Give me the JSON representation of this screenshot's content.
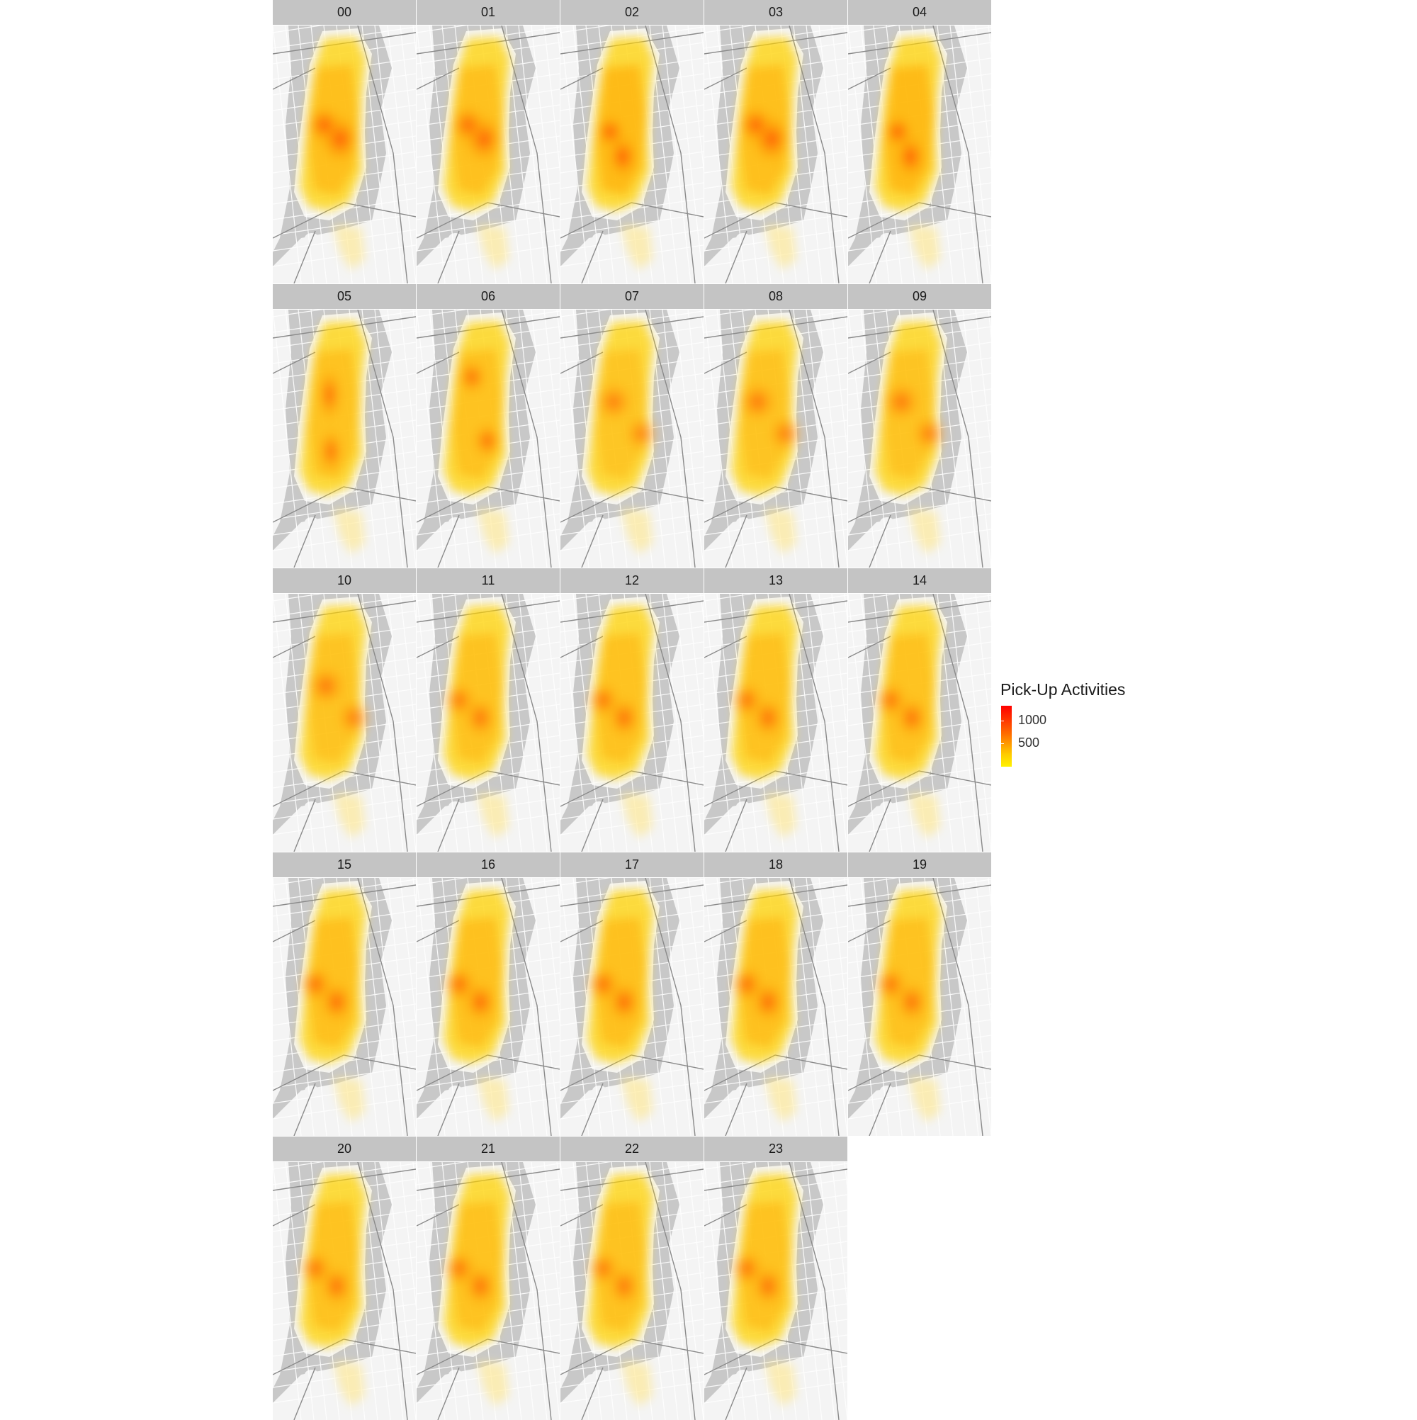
{
  "legend": {
    "title": "Pick-Up Activities",
    "breaks": [
      {
        "label": "1000",
        "value": 1000
      },
      {
        "label": "500",
        "value": 500
      }
    ],
    "range": [
      250,
      1250
    ],
    "colors": [
      "#fff200",
      "#ffcc00",
      "#ff6a00",
      "#ff0000"
    ]
  },
  "basemap": {
    "water_color": "#c8c8c8",
    "land_color": "#f4f4f4",
    "street_color": "#ffffff",
    "highway_color": "#8a8a8a"
  },
  "panels": [
    {
      "label": "00",
      "peak": 0.55,
      "hotspot": "midtown-east"
    },
    {
      "label": "01",
      "peak": 0.5,
      "hotspot": "midtown-east"
    },
    {
      "label": "02",
      "peak": 0.75,
      "hotspot": "lower-east"
    },
    {
      "label": "03",
      "peak": 0.55,
      "hotspot": "midtown-east"
    },
    {
      "label": "04",
      "peak": 0.75,
      "hotspot": "lower-east"
    },
    {
      "label": "05",
      "peak": 0.45,
      "hotspot": "midtown-spine"
    },
    {
      "label": "06",
      "peak": 0.45,
      "hotspot": "upper-west"
    },
    {
      "label": "07",
      "peak": 0.3,
      "hotspot": "spread"
    },
    {
      "label": "08",
      "peak": 0.35,
      "hotspot": "spread"
    },
    {
      "label": "09",
      "peak": 0.35,
      "hotspot": "spread"
    },
    {
      "label": "10",
      "peak": 0.35,
      "hotspot": "spread"
    },
    {
      "label": "11",
      "peak": 0.4,
      "hotspot": "midtown"
    },
    {
      "label": "12",
      "peak": 0.45,
      "hotspot": "midtown"
    },
    {
      "label": "13",
      "peak": 0.45,
      "hotspot": "midtown"
    },
    {
      "label": "14",
      "peak": 0.45,
      "hotspot": "midtown"
    },
    {
      "label": "15",
      "peak": 0.5,
      "hotspot": "midtown"
    },
    {
      "label": "16",
      "peak": 0.5,
      "hotspot": "midtown"
    },
    {
      "label": "17",
      "peak": 0.5,
      "hotspot": "midtown"
    },
    {
      "label": "18",
      "peak": 0.5,
      "hotspot": "midtown"
    },
    {
      "label": "19",
      "peak": 0.45,
      "hotspot": "midtown"
    },
    {
      "label": "20",
      "peak": 0.45,
      "hotspot": "midtown"
    },
    {
      "label": "21",
      "peak": 0.45,
      "hotspot": "midtown"
    },
    {
      "label": "22",
      "peak": 0.4,
      "hotspot": "midtown"
    },
    {
      "label": "23",
      "peak": 0.45,
      "hotspot": "midtown"
    }
  ]
}
